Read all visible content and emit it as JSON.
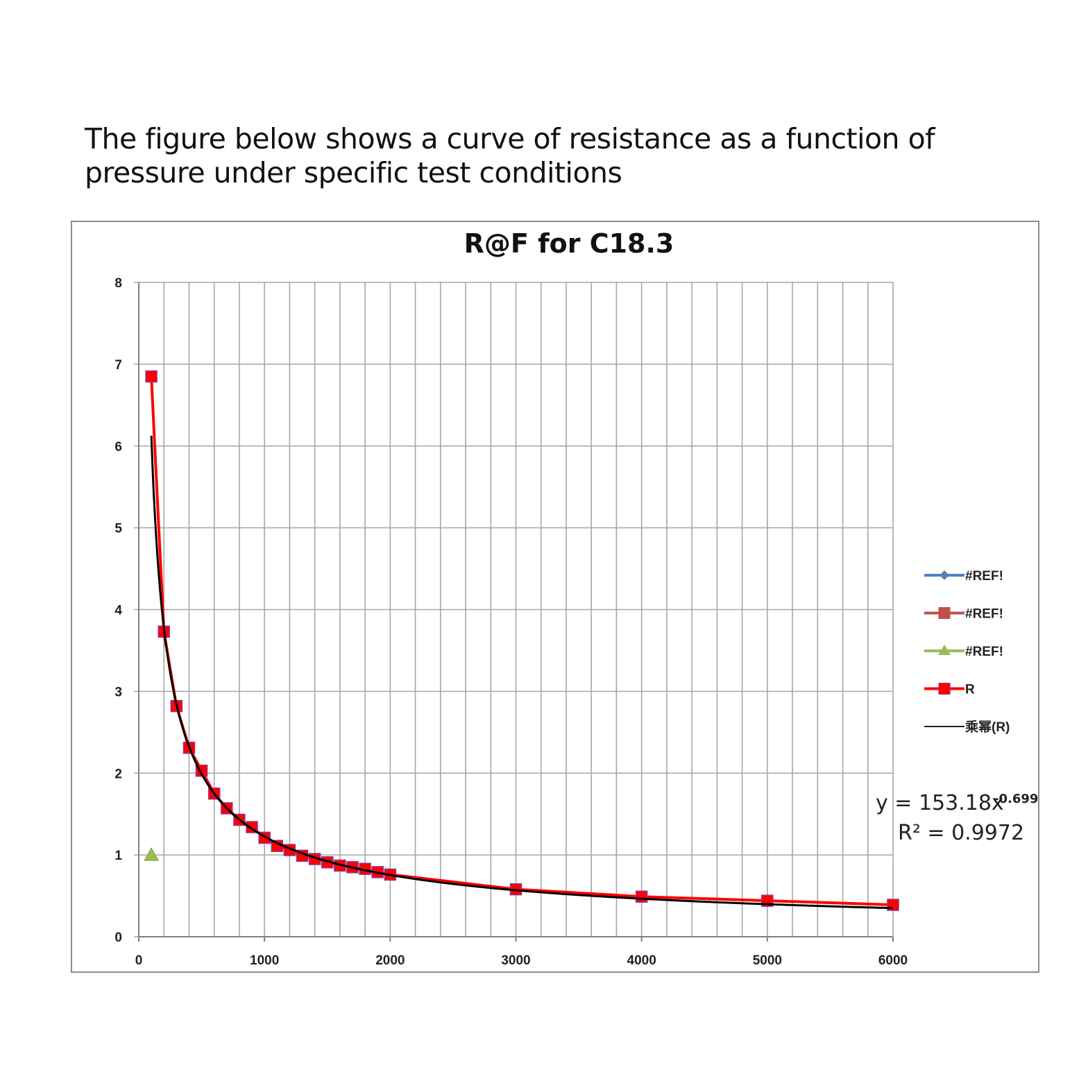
{
  "caption": "The figure below shows a curve of resistance as a function of pressure under specific test conditions",
  "chart_data": {
    "type": "scatter",
    "title": "R@F  for C18.3",
    "xlabel": "",
    "ylabel": "",
    "xlim": [
      0,
      6000
    ],
    "ylim": [
      0,
      8
    ],
    "x_ticks": [
      0,
      1000,
      2000,
      3000,
      4000,
      5000,
      6000
    ],
    "y_ticks": [
      0,
      1,
      2,
      3,
      4,
      5,
      6,
      7,
      8
    ],
    "grid": true,
    "series": [
      {
        "name": "#REF!",
        "color": "#4f81bd",
        "marker": "diamond",
        "x": [],
        "y": []
      },
      {
        "name": "#REF!",
        "color": "#c0504d",
        "marker": "square",
        "x": [],
        "y": []
      },
      {
        "name": "#REF!",
        "color": "#9bbb59",
        "marker": "triangle",
        "x": [
          100
        ],
        "y": [
          1.0
        ]
      },
      {
        "name": "R",
        "color": "#ff0000",
        "marker": "square",
        "line": true,
        "x": [
          100,
          200,
          300,
          400,
          500,
          600,
          700,
          800,
          900,
          1000,
          1100,
          1200,
          1300,
          1400,
          1500,
          1600,
          1700,
          1800,
          1900,
          2000,
          3000,
          4000,
          5000,
          6000
        ],
        "y": [
          6.85,
          3.73,
          2.82,
          2.31,
          2.03,
          1.75,
          1.57,
          1.43,
          1.34,
          1.21,
          1.11,
          1.06,
          0.99,
          0.95,
          0.91,
          0.87,
          0.85,
          0.83,
          0.79,
          0.76,
          0.58,
          0.49,
          0.44,
          0.39
        ]
      },
      {
        "name": "乘幂(R)",
        "color": "#000000",
        "marker": "none",
        "trendline": "power",
        "coef": 153.18,
        "exponent": -0.699,
        "x_start": 100,
        "x_end": 6000
      }
    ],
    "legend_position": "right",
    "annotation": {
      "equation_base": "y = 153.18x",
      "equation_exp": "-0.699",
      "r_squared": "R² = 0.9972"
    }
  }
}
